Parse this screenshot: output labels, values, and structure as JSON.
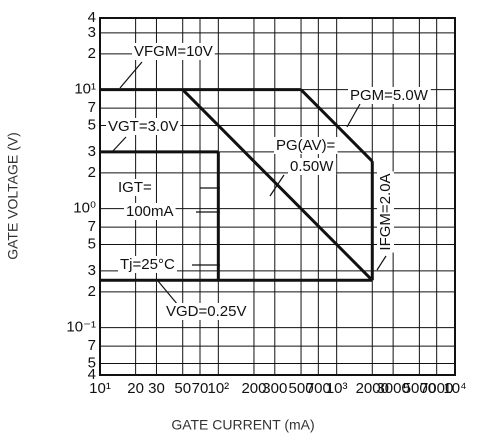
{
  "chart_data": {
    "type": "line",
    "xlabel": "GATE CURRENT (mA)",
    "ylabel": "GATE VOLTAGE (V)",
    "xlog": true,
    "ylog": true,
    "grid": true,
    "xlim": [
      10,
      10000
    ],
    "ylim": [
      0.04,
      40
    ],
    "xticks": [
      {
        "value": 10,
        "label": "10¹"
      },
      20,
      30,
      50,
      70,
      {
        "value": 100,
        "label": "10²"
      },
      200,
      300,
      500,
      700,
      {
        "value": 1000,
        "label": "10³"
      },
      2000,
      3000,
      5000,
      7000,
      {
        "value": 10000,
        "label": "10⁴"
      }
    ],
    "yticks": [
      {
        "value": 40,
        "label": "4"
      },
      {
        "value": 30,
        "label": "3"
      },
      {
        "value": 20,
        "label": "2"
      },
      {
        "value": 10,
        "label": "10¹"
      },
      7,
      5,
      3,
      2,
      {
        "value": 1,
        "label": "10⁰"
      },
      {
        "value": 0.7,
        "label": "7"
      },
      {
        "value": 0.5,
        "label": "5"
      },
      {
        "value": 0.3,
        "label": "3"
      },
      {
        "value": 0.2,
        "label": "2"
      },
      {
        "value": 0.1,
        "label": "10⁻¹"
      },
      {
        "value": 0.07,
        "label": "7"
      },
      {
        "value": 0.05,
        "label": "5"
      },
      {
        "value": 0.04,
        "label": "4"
      }
    ],
    "series": [
      {
        "name": "VFGM=10V",
        "color": "#111111",
        "x": [
          10,
          500
        ],
        "values": [
          10,
          10
        ]
      },
      {
        "name": "PGM=5.0W",
        "color": "#111111",
        "x": [
          500,
          2000
        ],
        "values": [
          10,
          2.5
        ]
      },
      {
        "name": "IFGM=2.0A",
        "color": "#111111",
        "x": [
          2000,
          2000
        ],
        "values": [
          2.5,
          0.25
        ]
      },
      {
        "name": "VGD=0.25V",
        "color": "#111111",
        "x": [
          10,
          2000
        ],
        "values": [
          0.25,
          0.25
        ]
      },
      {
        "name": "VGT=3.0V",
        "color": "#111111",
        "x": [
          10,
          100
        ],
        "values": [
          3,
          3
        ]
      },
      {
        "color": "#111111",
        "x": [
          100,
          100
        ],
        "values": [
          3,
          0.25
        ]
      },
      {
        "color": "#111111",
        "x": [
          50,
          2000
        ],
        "values": [
          10,
          0.25
        ]
      }
    ],
    "annotations": [
      "PG(AV)=",
      "0.50W",
      "IGT=",
      "100mA",
      "Tj=25°C"
    ]
  }
}
